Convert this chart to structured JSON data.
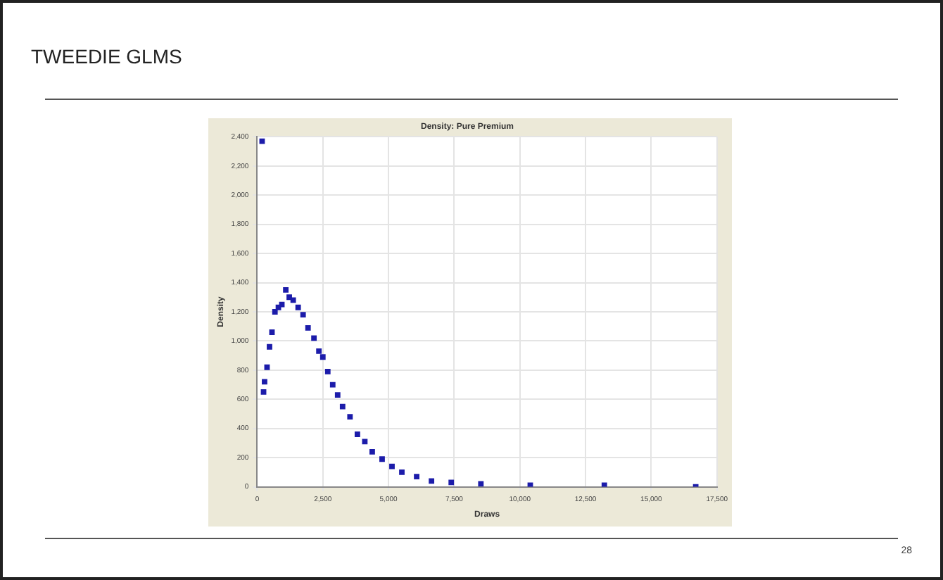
{
  "chart_data": {
    "type": "scatter",
    "title": "Density: Pure Premium",
    "xlabel": "Draws",
    "ylabel": "Density",
    "annotations": [
      "TWEEDIE GLMS",
      "28"
    ],
    "x": [
      188,
      244,
      282,
      376,
      470,
      564,
      677,
      808,
      940,
      1090,
      1222,
      1372,
      1560,
      1748,
      1936,
      2162,
      2350,
      2500,
      2688,
      2876,
      3064,
      3252,
      3534,
      3816,
      4098,
      4380,
      4756,
      5132,
      5508,
      6072,
      6636,
      7388,
      8516,
      10396,
      13216,
      16694
    ],
    "series": [
      {
        "color": "#1c1caa",
        "values": [
          2370,
          650,
          720,
          820,
          960,
          1060,
          1200,
          1230,
          1250,
          1350,
          1300,
          1280,
          1230,
          1180,
          1090,
          1020,
          930,
          890,
          790,
          700,
          630,
          550,
          480,
          360,
          310,
          240,
          190,
          140,
          100,
          70,
          40,
          30,
          20,
          10,
          10,
          0
        ]
      }
    ],
    "xlim": [
      0,
      17500
    ],
    "xticks": [
      {
        "value": 0,
        "label": "0"
      },
      {
        "value": 2500,
        "label": "2,500"
      },
      {
        "value": 5000,
        "label": "5,000"
      },
      {
        "value": 7500,
        "label": "7,500"
      },
      {
        "value": 10000,
        "label": "10,000"
      },
      {
        "value": 12500,
        "label": "12,500"
      },
      {
        "value": 15000,
        "label": "15,000"
      },
      {
        "value": 17500,
        "label": "17,500"
      }
    ],
    "ylim": [
      0,
      2400
    ],
    "yticks": [
      {
        "value": 0,
        "label": "0"
      },
      {
        "value": 200,
        "label": "200"
      },
      {
        "value": 400,
        "label": "400"
      },
      {
        "value": 600,
        "label": "600"
      },
      {
        "value": 800,
        "label": "800"
      },
      {
        "value": 1000,
        "label": "1,000"
      },
      {
        "value": 1200,
        "label": "1,200"
      },
      {
        "value": 1400,
        "label": "1,400"
      },
      {
        "value": 1600,
        "label": "1,600"
      },
      {
        "value": 1800,
        "label": "1,800"
      },
      {
        "value": 2000,
        "label": "2,000"
      },
      {
        "value": 2200,
        "label": "2,200"
      },
      {
        "value": 2400,
        "label": "2,400"
      }
    ],
    "grid": true,
    "legend": false,
    "marker": "square"
  }
}
